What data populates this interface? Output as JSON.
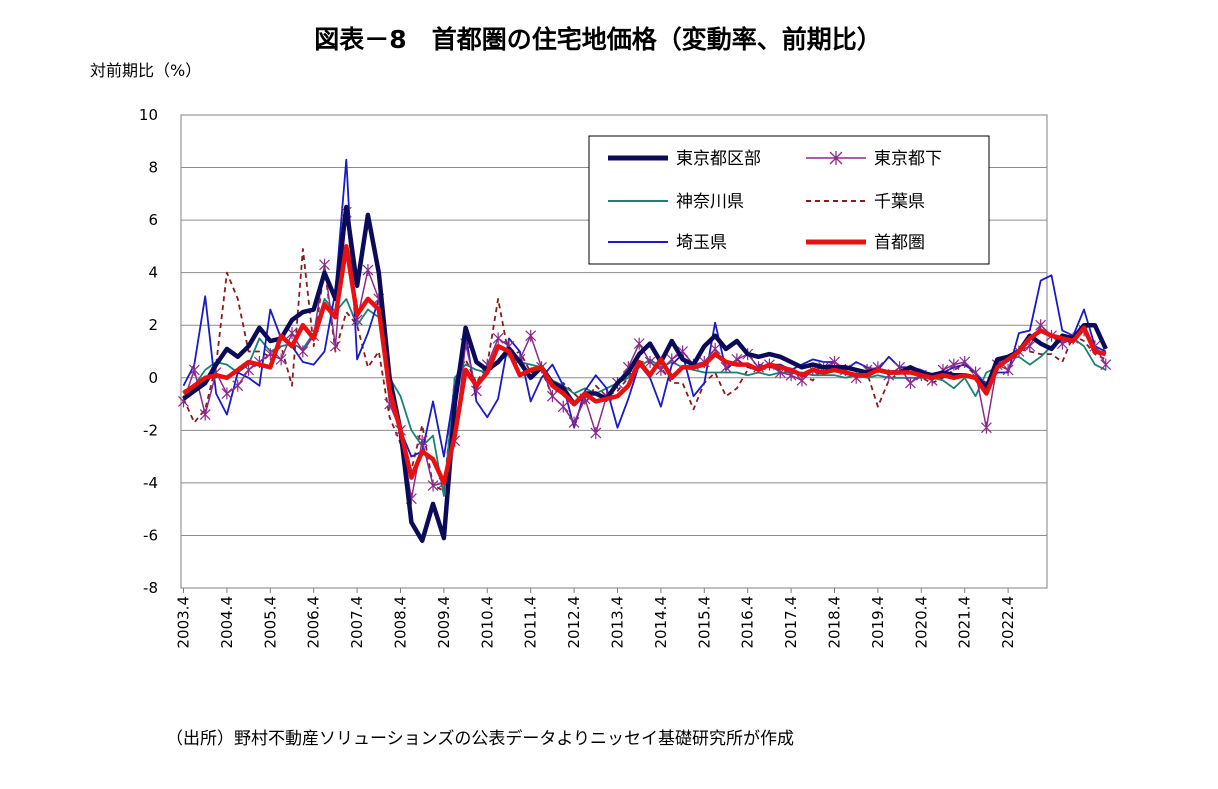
{
  "chart_data": {
    "type": "line",
    "title": "図表－8　首都圏の住宅地価格（変動率、前期比）",
    "ylabel": "対前期比（%）",
    "source": "（出所）野村不動産ソリューションズの公表データよりニッセイ基礎研究所が作成",
    "ylim": [
      -8,
      10
    ],
    "yticks": [
      10,
      8,
      6,
      4,
      2,
      0,
      -2,
      -4,
      -6,
      -8
    ],
    "xtick_labels": [
      "2003.4",
      "2004.4",
      "2005.4",
      "2006.4",
      "2007.4",
      "2008.4",
      "2009.4",
      "2010.4",
      "2011.4",
      "2012.4",
      "2013.4",
      "2014.4",
      "2015.4",
      "2016.4",
      "2017.4",
      "2018.4",
      "2019.4",
      "2020.4",
      "2021.4",
      "2022.4"
    ],
    "grid": "horizontal",
    "legend_position": "top-right",
    "series": [
      {
        "name": "東京都区部",
        "color": "#0b0b5a",
        "style": "thick",
        "values": [
          -0.8,
          -0.5,
          -0.2,
          0.5,
          1.1,
          0.8,
          1.2,
          1.9,
          1.4,
          1.5,
          2.2,
          2.5,
          2.6,
          4.0,
          3.0,
          6.5,
          3.5,
          6.2,
          4.0,
          0.0,
          -2.0,
          -5.5,
          -6.2,
          -4.8,
          -6.1,
          -1.0,
          1.9,
          0.6,
          0.3,
          0.6,
          1.1,
          0.6,
          0.0,
          0.4,
          -0.2,
          -0.4,
          -1.0,
          -0.6,
          -0.6,
          -0.8,
          -0.2,
          0.2,
          0.9,
          1.3,
          0.6,
          1.4,
          0.7,
          0.5,
          1.2,
          1.6,
          1.1,
          1.4,
          0.9,
          0.8,
          0.9,
          0.8,
          0.6,
          0.4,
          0.5,
          0.4,
          0.4,
          0.4,
          0.3,
          0.2,
          0.3,
          0.2,
          0.2,
          0.4,
          0.2,
          0.1,
          0.2,
          0.1,
          0.1,
          0.0,
          -0.4,
          0.7,
          0.8,
          1.0,
          1.6,
          1.3,
          1.1,
          1.6,
          1.5,
          2.0,
          2.0,
          1.1
        ]
      },
      {
        "name": "東京都下",
        "color": "#8b2a8b",
        "style": "star",
        "values": [
          -0.9,
          0.3,
          -1.4,
          0.2,
          -0.6,
          -0.3,
          0.3,
          0.6,
          0.9,
          0.7,
          1.7,
          1.0,
          1.6,
          4.3,
          1.2,
          6.3,
          2.2,
          4.1,
          3.0,
          -1.0,
          -2.0,
          -4.6,
          -2.4,
          -4.1,
          -4.0,
          -2.4,
          1.3,
          -0.5,
          0.5,
          1.5,
          1.2,
          0.7,
          1.6,
          0.4,
          -0.7,
          -1.1,
          -1.7,
          -0.8,
          -2.1,
          -0.7,
          -0.2,
          0.4,
          1.3,
          0.6,
          0.3,
          0.7,
          1.0,
          0.5,
          0.6,
          1.1,
          0.4,
          0.7,
          0.9,
          0.4,
          0.5,
          0.2,
          0.1,
          -0.1,
          0.3,
          0.4,
          0.6,
          0.3,
          0.0,
          0.3,
          0.4,
          0.1,
          0.4,
          -0.2,
          0.1,
          -0.1,
          0.3,
          0.5,
          0.6,
          0.2,
          -1.9,
          0.5,
          0.3,
          1.0,
          1.2,
          2.0,
          1.6,
          1.3,
          1.5,
          1.8,
          1.2,
          0.5
        ]
      },
      {
        "name": "神奈川県",
        "color": "#1b8078",
        "style": "thin",
        "values": [
          -0.5,
          -0.3,
          0.3,
          0.6,
          0.5,
          0.2,
          0.5,
          1.5,
          1.0,
          1.2,
          1.3,
          1.1,
          1.7,
          3.0,
          2.5,
          3.0,
          2.0,
          2.6,
          2.3,
          0.0,
          -0.7,
          -2.0,
          -2.6,
          -2.2,
          -4.5,
          0.0,
          0.5,
          0.3,
          0.2,
          0.6,
          0.9,
          0.6,
          0.5,
          0.4,
          -0.1,
          -0.3,
          -0.6,
          -0.4,
          -0.6,
          -0.4,
          -0.2,
          0.0,
          0.4,
          0.7,
          0.4,
          0.6,
          0.4,
          0.3,
          0.2,
          0.2,
          0.2,
          0.2,
          0.1,
          0.2,
          0.1,
          0.2,
          0.2,
          0.2,
          0.1,
          0.1,
          0.1,
          0.0,
          0.1,
          0.0,
          0.1,
          0.0,
          0.0,
          0.0,
          0.0,
          0.0,
          -0.1,
          -0.4,
          0.0,
          -0.7,
          0.2,
          0.4,
          0.7,
          0.8,
          0.5,
          0.8,
          1.2,
          1.4,
          1.5,
          1.2,
          0.5,
          0.3
        ]
      },
      {
        "name": "千葉県",
        "color": "#8b1a1a",
        "style": "dashed",
        "values": [
          -0.8,
          -1.7,
          -1.2,
          0.5,
          4.0,
          3.0,
          1.0,
          1.0,
          0.8,
          1.2,
          -0.3,
          4.9,
          1.2,
          4.2,
          1.0,
          2.5,
          2.0,
          0.4,
          1.0,
          -1.5,
          -2.5,
          -3.5,
          -1.8,
          -4.1,
          -4.3,
          0.0,
          0.7,
          -0.2,
          0.5,
          3.0,
          0.8,
          1.0,
          0.2,
          0.3,
          -0.7,
          -0.2,
          -0.6,
          -1.0,
          -0.3,
          -0.7,
          -0.5,
          0.0,
          0.6,
          0.6,
          0.4,
          -0.2,
          -0.2,
          -1.2,
          -0.2,
          0.2,
          -0.7,
          -0.4,
          0.3,
          0.5,
          0.4,
          0.3,
          0.2,
          0.1,
          -0.1,
          0.4,
          0.4,
          0.3,
          0.0,
          0.2,
          -1.1,
          -0.1,
          0.2,
          0.2,
          0.0,
          -0.2,
          0.0,
          0.3,
          0.5,
          0.1,
          -0.2,
          0.6,
          0.8,
          1.1,
          1.0,
          0.9,
          0.9,
          0.6,
          1.6,
          1.4,
          0.9,
          0.7
        ]
      },
      {
        "name": "埼玉県",
        "color": "#1a1ac8",
        "style": "thin",
        "values": [
          -0.3,
          0.5,
          3.1,
          -0.6,
          -1.4,
          0.2,
          0.0,
          -0.3,
          2.6,
          1.5,
          1.2,
          0.6,
          0.5,
          1.0,
          3.3,
          8.3,
          0.7,
          1.7,
          3.0,
          0.0,
          -2.0,
          -3.0,
          -2.8,
          -0.9,
          -3.0,
          -0.4,
          1.7,
          -0.9,
          -1.5,
          -0.8,
          1.5,
          1.0,
          -0.9,
          0.0,
          0.5,
          -0.3,
          -1.9,
          -0.5,
          0.1,
          -0.4,
          -1.9,
          -0.8,
          0.5,
          0.0,
          -1.1,
          0.5,
          0.9,
          -0.7,
          -0.2,
          2.1,
          0.3,
          0.7,
          0.4,
          0.3,
          0.5,
          0.5,
          0.3,
          0.5,
          0.7,
          0.6,
          0.6,
          0.3,
          0.6,
          0.4,
          0.3,
          0.8,
          0.4,
          0.4,
          0.3,
          0.1,
          0.2,
          0.4,
          0.5,
          0.2,
          -0.3,
          0.2,
          0.2,
          1.7,
          1.8,
          3.7,
          3.9,
          1.8,
          1.6,
          2.6,
          1.2,
          1.0
        ]
      },
      {
        "name": "首都圏",
        "color": "#e81010",
        "style": "thick",
        "values": [
          -0.6,
          -0.3,
          0.0,
          0.1,
          0.0,
          0.3,
          0.6,
          0.5,
          0.4,
          1.6,
          1.2,
          2.0,
          1.5,
          2.8,
          2.3,
          5.0,
          2.4,
          3.0,
          2.6,
          -0.5,
          -2.0,
          -3.8,
          -2.8,
          -3.1,
          -4.0,
          -2.2,
          0.3,
          -0.3,
          0.2,
          1.2,
          1.0,
          0.1,
          0.3,
          0.4,
          -0.3,
          -0.6,
          -1.0,
          -0.6,
          -0.9,
          -0.8,
          -0.7,
          -0.3,
          0.6,
          0.1,
          0.7,
          0.0,
          0.4,
          0.4,
          0.5,
          0.9,
          0.6,
          0.5,
          0.5,
          0.3,
          0.5,
          0.4,
          0.3,
          0.1,
          0.3,
          0.2,
          0.3,
          0.2,
          0.1,
          0.1,
          0.3,
          0.2,
          0.2,
          0.2,
          0.1,
          0.0,
          0.1,
          0.0,
          0.1,
          0.0,
          -0.6,
          0.4,
          0.7,
          1.0,
          1.5,
          1.8,
          1.6,
          1.5,
          1.4,
          1.9,
          1.0,
          0.9
        ]
      }
    ]
  }
}
